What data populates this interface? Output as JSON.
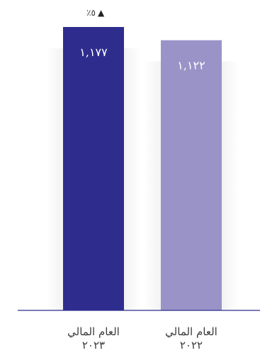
{
  "chart_data": {
    "type": "bar",
    "categories": [
      "العام المالي ٢٠٢٣",
      "العام المالي ٢٠٢٢"
    ],
    "category_lines": [
      [
        "العام المالي",
        "٢٠٢٣"
      ],
      [
        "العام المالي",
        "٢٠٢٢"
      ]
    ],
    "values": [
      1177,
      1122
    ],
    "value_labels": [
      "١,١٧٧",
      "١,١٢٢"
    ],
    "bar_colors": [
      "#2e2d8e",
      "#9a93c7"
    ],
    "annotation": {
      "text": "٪٥",
      "arrow": "▲",
      "bar_index": 0
    },
    "axis_color": "#2e2d8e",
    "value_label_color": "#ffffff",
    "ylim": [
      0,
      1177
    ],
    "grid": false,
    "title": "",
    "xlabel": "",
    "ylabel": ""
  }
}
